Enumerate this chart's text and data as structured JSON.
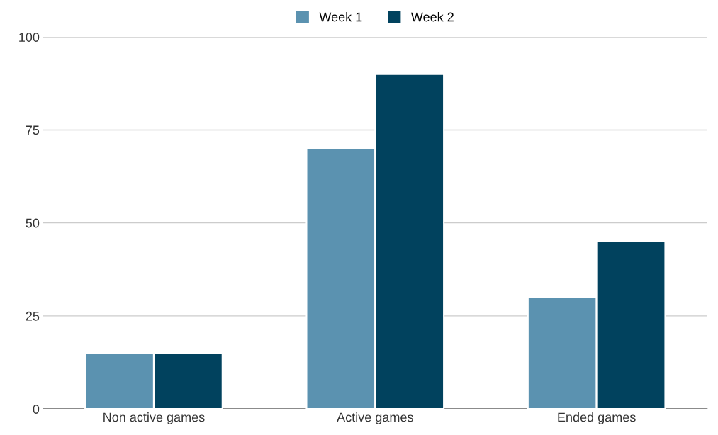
{
  "chart_data": {
    "type": "bar",
    "categories": [
      "Non active games",
      "Active games",
      "Ended games"
    ],
    "series": [
      {
        "name": "Week 1",
        "color": "#5b92b0",
        "values": [
          15,
          70,
          30
        ]
      },
      {
        "name": "Week 2",
        "color": "#01425e",
        "values": [
          15,
          90,
          45
        ]
      }
    ],
    "ylim": [
      0,
      100
    ],
    "yticks": [
      0,
      25,
      50,
      75,
      100
    ],
    "grid": "y",
    "legend": "top"
  }
}
